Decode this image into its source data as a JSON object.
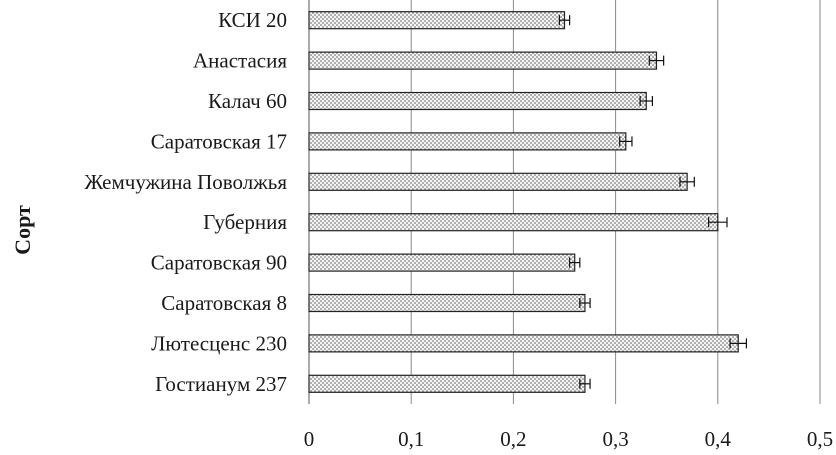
{
  "chart_data": {
    "type": "bar",
    "orientation": "horizontal",
    "title": "",
    "xlabel": "",
    "ylabel": "Сорт",
    "categories": [
      "КСИ 20",
      "Анастасия",
      "Калач 60",
      "Саратовская 17",
      "Жемчужина Поволжья",
      "Губерния",
      "Саратовская 90",
      "Саратовская 8",
      "Лютесценс 230",
      "Гостианум 237"
    ],
    "values": [
      0.25,
      0.34,
      0.33,
      0.31,
      0.37,
      0.4,
      0.26,
      0.27,
      0.42,
      0.27
    ],
    "errors": [
      0.005,
      0.007,
      0.006,
      0.006,
      0.007,
      0.009,
      0.005,
      0.005,
      0.008,
      0.005
    ],
    "x_ticks": [
      "0",
      "0,1",
      "0,2",
      "0,3",
      "0,4",
      "0,5"
    ],
    "xlim": [
      0,
      0.5
    ],
    "grid": "vertical",
    "legend": "none",
    "colors": {
      "bar_fill": "#f4f4f4",
      "dots": "#555555",
      "bar_stroke": "#222222",
      "grid": "#8a8a8a"
    }
  }
}
